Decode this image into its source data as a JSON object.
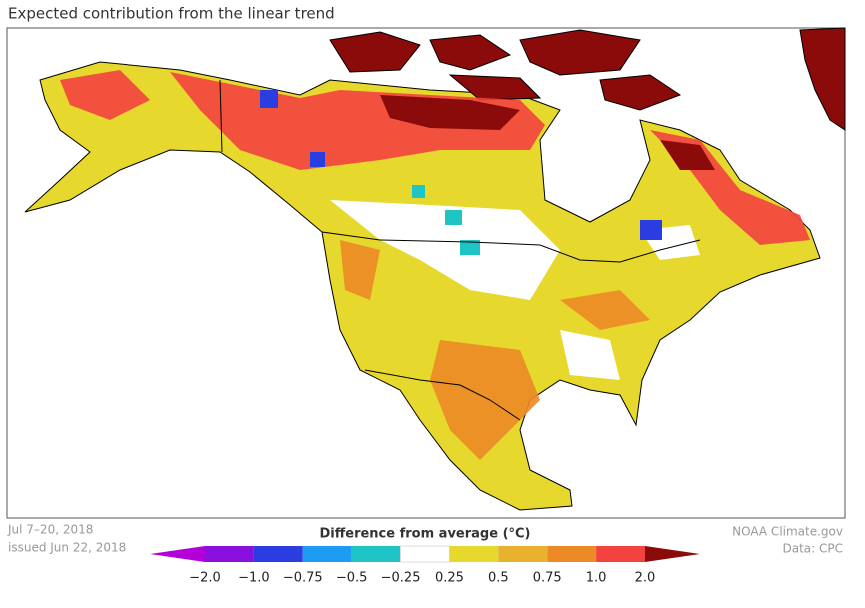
{
  "header": {
    "title": "Expected contribution from the linear trend"
  },
  "footer": {
    "dates": "Jul 7–20, 2018",
    "issued": "issued Jun 22, 2018",
    "credit": "NOAA Climate.gov",
    "source": "Data: CPC"
  },
  "legend": {
    "title": "Difference from average (°C)",
    "ticks": [
      "−2.0",
      "−1.0",
      "−0.75",
      "−0.5",
      "−0.25",
      "0.25",
      "0.5",
      "0.75",
      "1.0",
      "2.0"
    ],
    "colors": [
      "#b300d9",
      "#8a10e0",
      "#2a3de0",
      "#1e9cf2",
      "#1fc4c4",
      "#ffffff",
      "#e6d82c",
      "#e8b22e",
      "#ec8a26",
      "#f2433f",
      "#8b0a0a"
    ]
  }
}
